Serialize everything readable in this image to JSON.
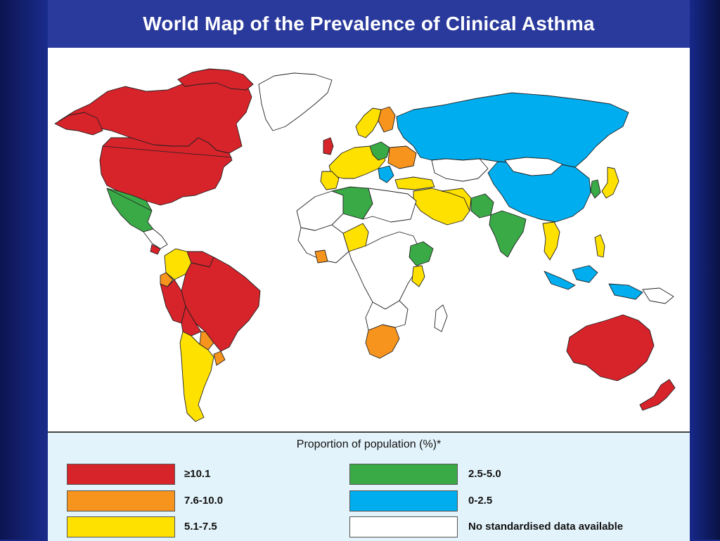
{
  "title": "World Map of the Prevalence of Clinical Asthma",
  "legend": {
    "title": "Proportion of population (%)*",
    "items": [
      {
        "label": "≥10.1",
        "color": "#d7232a"
      },
      {
        "label": "7.6-10.0",
        "color": "#f7941d"
      },
      {
        "label": "5.1-7.5",
        "color": "#ffe100"
      },
      {
        "label": "2.5-5.0",
        "color": "#3aaa47"
      },
      {
        "label": "0-2.5",
        "color": "#00adee"
      },
      {
        "label": "No standardised data available",
        "color": "#ffffff"
      }
    ]
  },
  "colors": {
    "high": "#d7232a",
    "mid_high": "#f7941d",
    "mid": "#ffe100",
    "low_mid": "#3aaa47",
    "low": "#00adee",
    "no_data": "#ffffff",
    "title_bar": "#2a3a9c",
    "legend_bg": "#e3f3fb"
  }
}
